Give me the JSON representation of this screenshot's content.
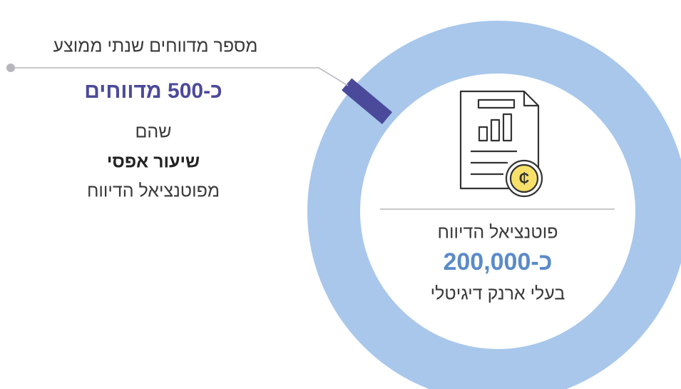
{
  "callout": {
    "label": "מספר מדווחים שנתי ממוצע",
    "value": "כ-500 מדווחים",
    "lines": [
      "שהם",
      "שיעור אפסי",
      "מפוטנציאל הדיווח"
    ]
  },
  "center": {
    "label": "פוטנציאל הדיווח",
    "value": "כ-200,000",
    "note": "בעלי ארנק דיגיטלי"
  }
}
